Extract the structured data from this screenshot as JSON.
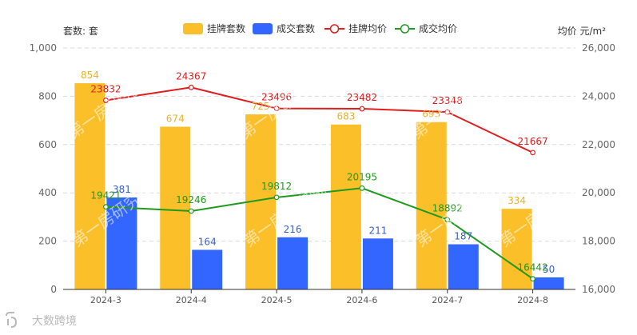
{
  "chart_data": {
    "type": "bar",
    "categories": [
      "2024-3",
      "2024-4",
      "2024-5",
      "2024-6",
      "2024-7",
      "2024-8"
    ],
    "left_axis": {
      "label": "套数: 套",
      "ylim": [
        0,
        1000
      ],
      "ticks": [
        0,
        200,
        400,
        600,
        800,
        1000
      ],
      "tick_labels": [
        "0",
        "200",
        "400",
        "600",
        "800",
        "1,000"
      ]
    },
    "right_axis": {
      "label": "均价 元/m²",
      "ylim": [
        16000,
        26000
      ],
      "ticks": [
        16000,
        18000,
        20000,
        22000,
        24000,
        26000
      ],
      "tick_labels": [
        "16,000",
        "18,000",
        "20,000",
        "22,000",
        "24,000",
        "26,000"
      ]
    },
    "legend_position": "top-center",
    "grid": true,
    "series": [
      {
        "name": "挂牌套数",
        "kind": "bar",
        "axis": "left",
        "color": "#fbbf2a",
        "label_color": "#eab227",
        "values": [
          854,
          674,
          725,
          683,
          693,
          334
        ]
      },
      {
        "name": "成交套数",
        "kind": "bar",
        "axis": "left",
        "color": "#3366ff",
        "label_color": "#3a5fc8",
        "values": [
          381,
          164,
          216,
          211,
          187,
          50
        ]
      },
      {
        "name": "挂牌均价",
        "kind": "line",
        "axis": "right",
        "color": "#dd1f1f",
        "values": [
          23832,
          24367,
          23496,
          23482,
          23348,
          21667
        ]
      },
      {
        "name": "成交均价",
        "kind": "line",
        "axis": "right",
        "color": "#1f9a1f",
        "values": [
          19421,
          19246,
          19812,
          20195,
          18892,
          16442
        ]
      }
    ],
    "watermark": "第一房研究院",
    "brand": "大数跨境"
  }
}
